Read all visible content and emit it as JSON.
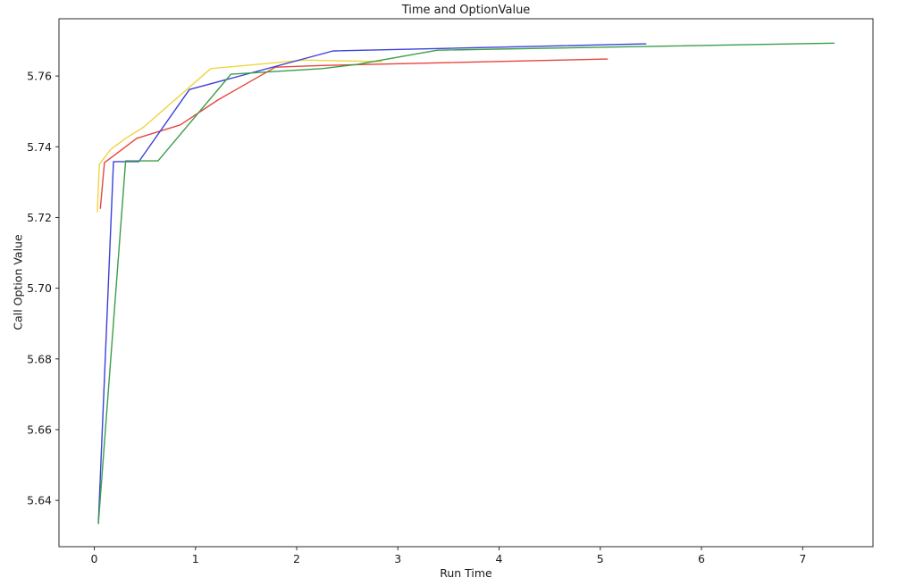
{
  "figure": {
    "background": "#ffffff",
    "spine_color": "#2b2b2b"
  },
  "chart_data": {
    "type": "line",
    "title": "Time and OptionValue",
    "xlabel": "Run Time",
    "ylabel": "Call Option Value",
    "xlim": [
      -0.349,
      7.695
    ],
    "ylim": [
      5.6269,
      5.7762
    ],
    "x_ticks": [
      0,
      1,
      2,
      3,
      4,
      5,
      6,
      7
    ],
    "x_tick_labels": [
      "0",
      "1",
      "2",
      "3",
      "4",
      "5",
      "6",
      "7"
    ],
    "y_ticks": [
      5.64,
      5.66,
      5.68,
      5.7,
      5.72,
      5.74,
      5.76
    ],
    "y_tick_labels": [
      "5.64",
      "5.66",
      "5.68",
      "5.70",
      "5.72",
      "5.74",
      "5.76"
    ],
    "grid": false,
    "legend": null,
    "series": [
      {
        "name": "red",
        "color": "#e6453e",
        "points": [
          [
            0.06,
            5.7226
          ],
          [
            0.1,
            5.7355
          ],
          [
            0.42,
            5.7424
          ],
          [
            0.85,
            5.7462
          ],
          [
            1.22,
            5.7532
          ],
          [
            1.79,
            5.7625
          ],
          [
            2.25,
            5.763
          ],
          [
            5.07,
            5.7648
          ]
        ]
      },
      {
        "name": "yellow",
        "color": "#f1d43e",
        "points": [
          [
            0.03,
            5.7216
          ],
          [
            0.05,
            5.735
          ],
          [
            0.16,
            5.7392
          ],
          [
            0.31,
            5.7424
          ],
          [
            0.49,
            5.7456
          ],
          [
            1.15,
            5.7621
          ],
          [
            2.07,
            5.7645
          ],
          [
            2.84,
            5.7641
          ]
        ]
      },
      {
        "name": "blue",
        "color": "#3a41d8",
        "points": [
          [
            0.04,
            5.6335
          ],
          [
            0.19,
            5.7358
          ],
          [
            0.44,
            5.7358
          ],
          [
            0.94,
            5.7562
          ],
          [
            2.36,
            5.7671
          ],
          [
            5.45,
            5.7691
          ]
        ]
      },
      {
        "name": "green",
        "color": "#3b9e47",
        "points": [
          [
            0.04,
            5.6335
          ],
          [
            0.31,
            5.736
          ],
          [
            0.63,
            5.736
          ],
          [
            1.35,
            5.7605
          ],
          [
            2.25,
            5.7621
          ],
          [
            2.6,
            5.7633
          ],
          [
            3.39,
            5.7673
          ],
          [
            7.31,
            5.7693
          ]
        ]
      }
    ]
  }
}
